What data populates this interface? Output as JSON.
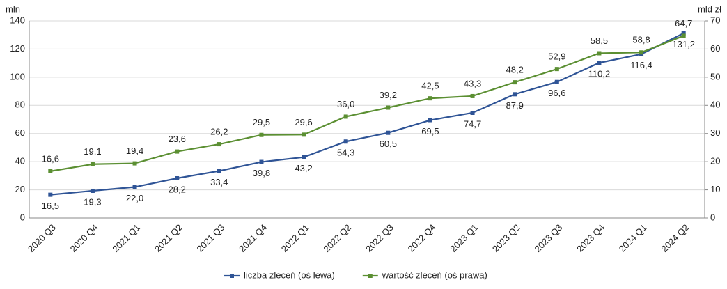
{
  "chart_data": {
    "type": "line",
    "y_label": "mln",
    "y2_label": "mld zł",
    "categories": [
      "2020 Q3",
      "2020 Q4",
      "2021 Q1",
      "2021 Q2",
      "2021 Q3",
      "2021 Q4",
      "2022 Q1",
      "2022 Q2",
      "2022 Q3",
      "2022 Q4",
      "2023 Q1",
      "2023 Q2",
      "2023 Q3",
      "2023 Q4",
      "2024 Q1",
      "2024 Q2"
    ],
    "series": [
      {
        "name": "liczba zleceń (oś lewa)",
        "color": "#2f5496",
        "axis": "y",
        "values": [
          16.5,
          19.3,
          22.0,
          28.2,
          33.4,
          39.8,
          43.2,
          54.3,
          60.5,
          69.5,
          74.7,
          87.9,
          96.6,
          110.2,
          116.4,
          131.2
        ],
        "value_labels": [
          "16,5",
          "19,3",
          "22,0",
          "28,2",
          "33,4",
          "39,8",
          "43,2",
          "54,3",
          "60,5",
          "69,5",
          "74,7",
          "87,9",
          "96,6",
          "110,2",
          "116,4",
          "131,2"
        ]
      },
      {
        "name": "wartość zleceń (oś prawa)",
        "color": "#5b8f32",
        "axis": "y2",
        "values": [
          16.6,
          19.1,
          19.4,
          23.6,
          26.2,
          29.5,
          29.6,
          36.0,
          39.2,
          42.5,
          43.3,
          48.2,
          52.9,
          58.5,
          58.8,
          64.7
        ],
        "value_labels": [
          "16,6",
          "19,1",
          "19,4",
          "23,6",
          "26,2",
          "29,5",
          "29,6",
          "36,0",
          "39,2",
          "42,5",
          "43,3",
          "48,2",
          "52,9",
          "58,5",
          "58,8",
          "64,7"
        ]
      }
    ],
    "ylim": [
      0,
      140
    ],
    "yticks": [
      0,
      20,
      40,
      60,
      80,
      100,
      120,
      140
    ],
    "y2lim": [
      0,
      70
    ],
    "y2ticks": [
      0,
      10,
      20,
      30,
      40,
      50,
      60,
      70
    ],
    "grid": true,
    "legend": "bottom"
  }
}
